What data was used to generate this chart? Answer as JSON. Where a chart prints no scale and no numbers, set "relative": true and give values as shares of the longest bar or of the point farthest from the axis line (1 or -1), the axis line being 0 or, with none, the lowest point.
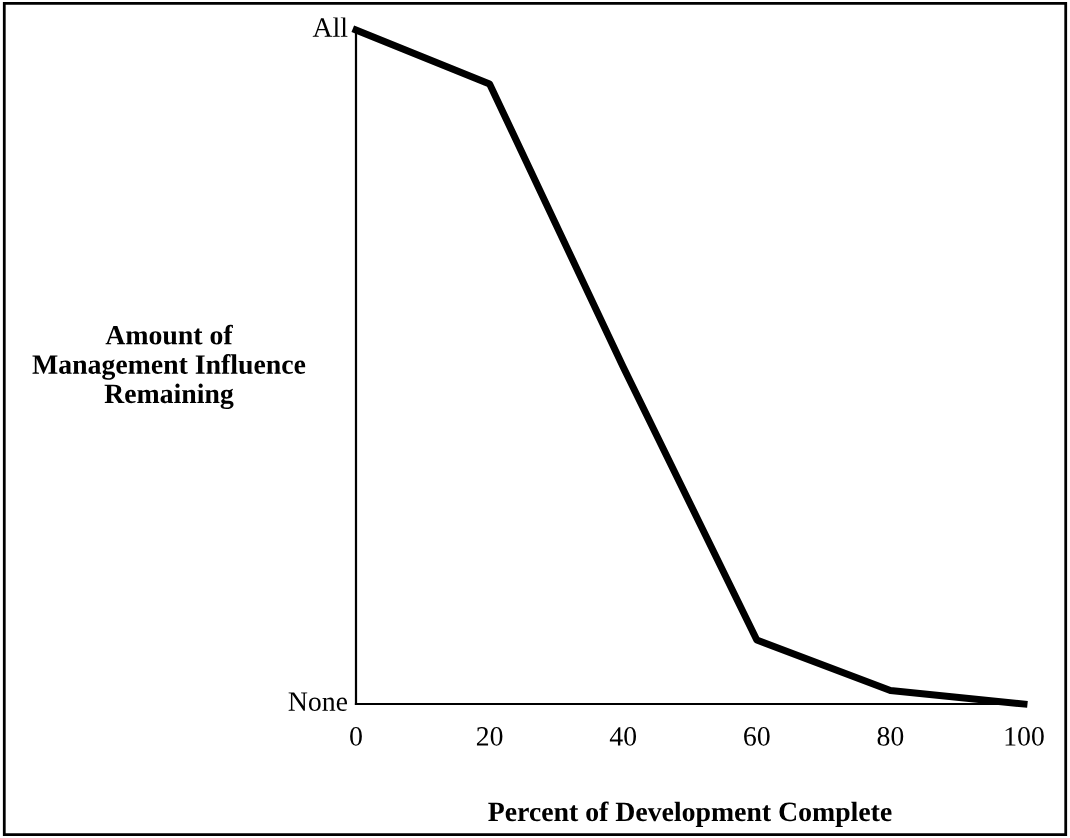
{
  "chart_data": {
    "type": "line",
    "xlabel": "Percent of Development Complete",
    "ylabel": "Amount of\nManagement Influence\nRemaining",
    "x": [
      0,
      20,
      40,
      60,
      80,
      100
    ],
    "series": [
      {
        "color": "#000000",
        "values": [
          1,
          0.92,
          0.5,
          0.095,
          0.02,
          0
        ]
      }
    ],
    "relative": true,
    "annotations": [
      "All",
      "None"
    ],
    "xlim": [
      0,
      100
    ],
    "xticks": [
      0,
      20,
      40,
      60,
      80,
      100
    ],
    "grid": false,
    "legend": false,
    "marker": "none",
    "line_style": "solid"
  }
}
